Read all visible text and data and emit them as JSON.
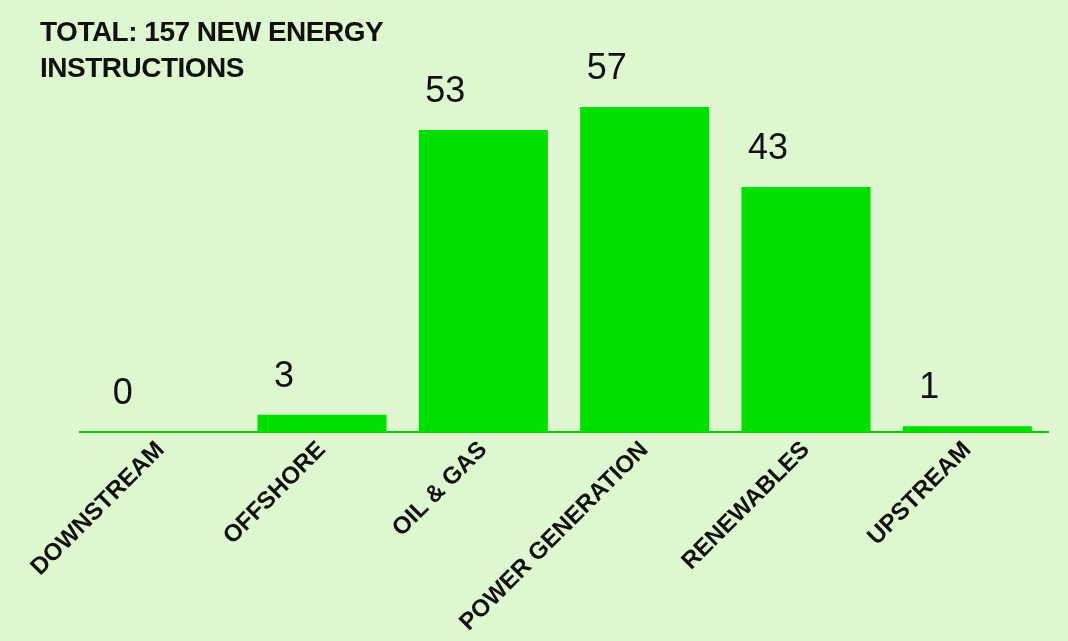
{
  "chart_data": {
    "type": "bar",
    "title": "TOTAL: 157 NEW ENERGY INSTRUCTIONS",
    "categories": [
      "DOWNSTREAM",
      "OFFSHORE",
      "OIL & GAS",
      "POWER GENERATION",
      "RENEWABLES",
      "UPSTREAM"
    ],
    "values": [
      0,
      3,
      53,
      57,
      43,
      1
    ],
    "color": "#00e000",
    "data_labels": true,
    "grid": false,
    "legend": false
  }
}
